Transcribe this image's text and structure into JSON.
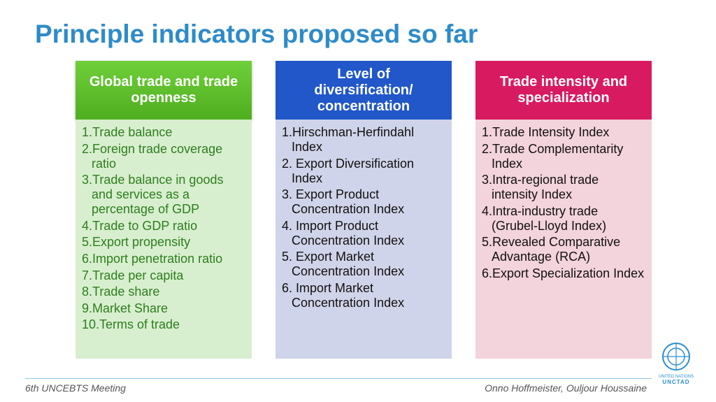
{
  "title": "Principle indicators proposed so far",
  "columns": [
    {
      "header": "Global trade and trade openness",
      "items": [
        "1.Trade balance",
        "2.Foreign trade coverage ratio",
        "3.Trade balance in goods and services as a percentage of GDP",
        "4.Trade to GDP ratio",
        "5.Export propensity",
        "6.Import penetration ratio",
        "7.Trade per capita",
        "8.Trade share",
        "9.Market Share",
        "10.Terms of trade"
      ]
    },
    {
      "header": "Level of diversification/ concentration",
      "items": [
        "1.Hirschman-Herfindahl Index",
        "2. Export Diversification Index",
        "3. Export Product Concentration Index",
        "4. Import Product Concentration Index",
        "5. Export Market Concentration Index",
        "6. Import Market Concentration Index"
      ]
    },
    {
      "header": "Trade intensity and specialization",
      "items": [
        "1.Trade Intensity Index",
        "2.Trade Complementarity Index",
        "3.Intra-regional trade intensity Index",
        "4.Intra-industry trade (Grubel-Lloyd Index)",
        "5.Revealed Comparative Advantage (RCA)",
        "6.Export Specialization Index"
      ]
    }
  ],
  "footer": {
    "left": "6th UNCEBTS Meeting",
    "right": "Onno Hoffmeister, Ouljour Houssaine"
  },
  "logo": {
    "line1": "UNITED NATIONS",
    "line2": "UNCTAD"
  }
}
